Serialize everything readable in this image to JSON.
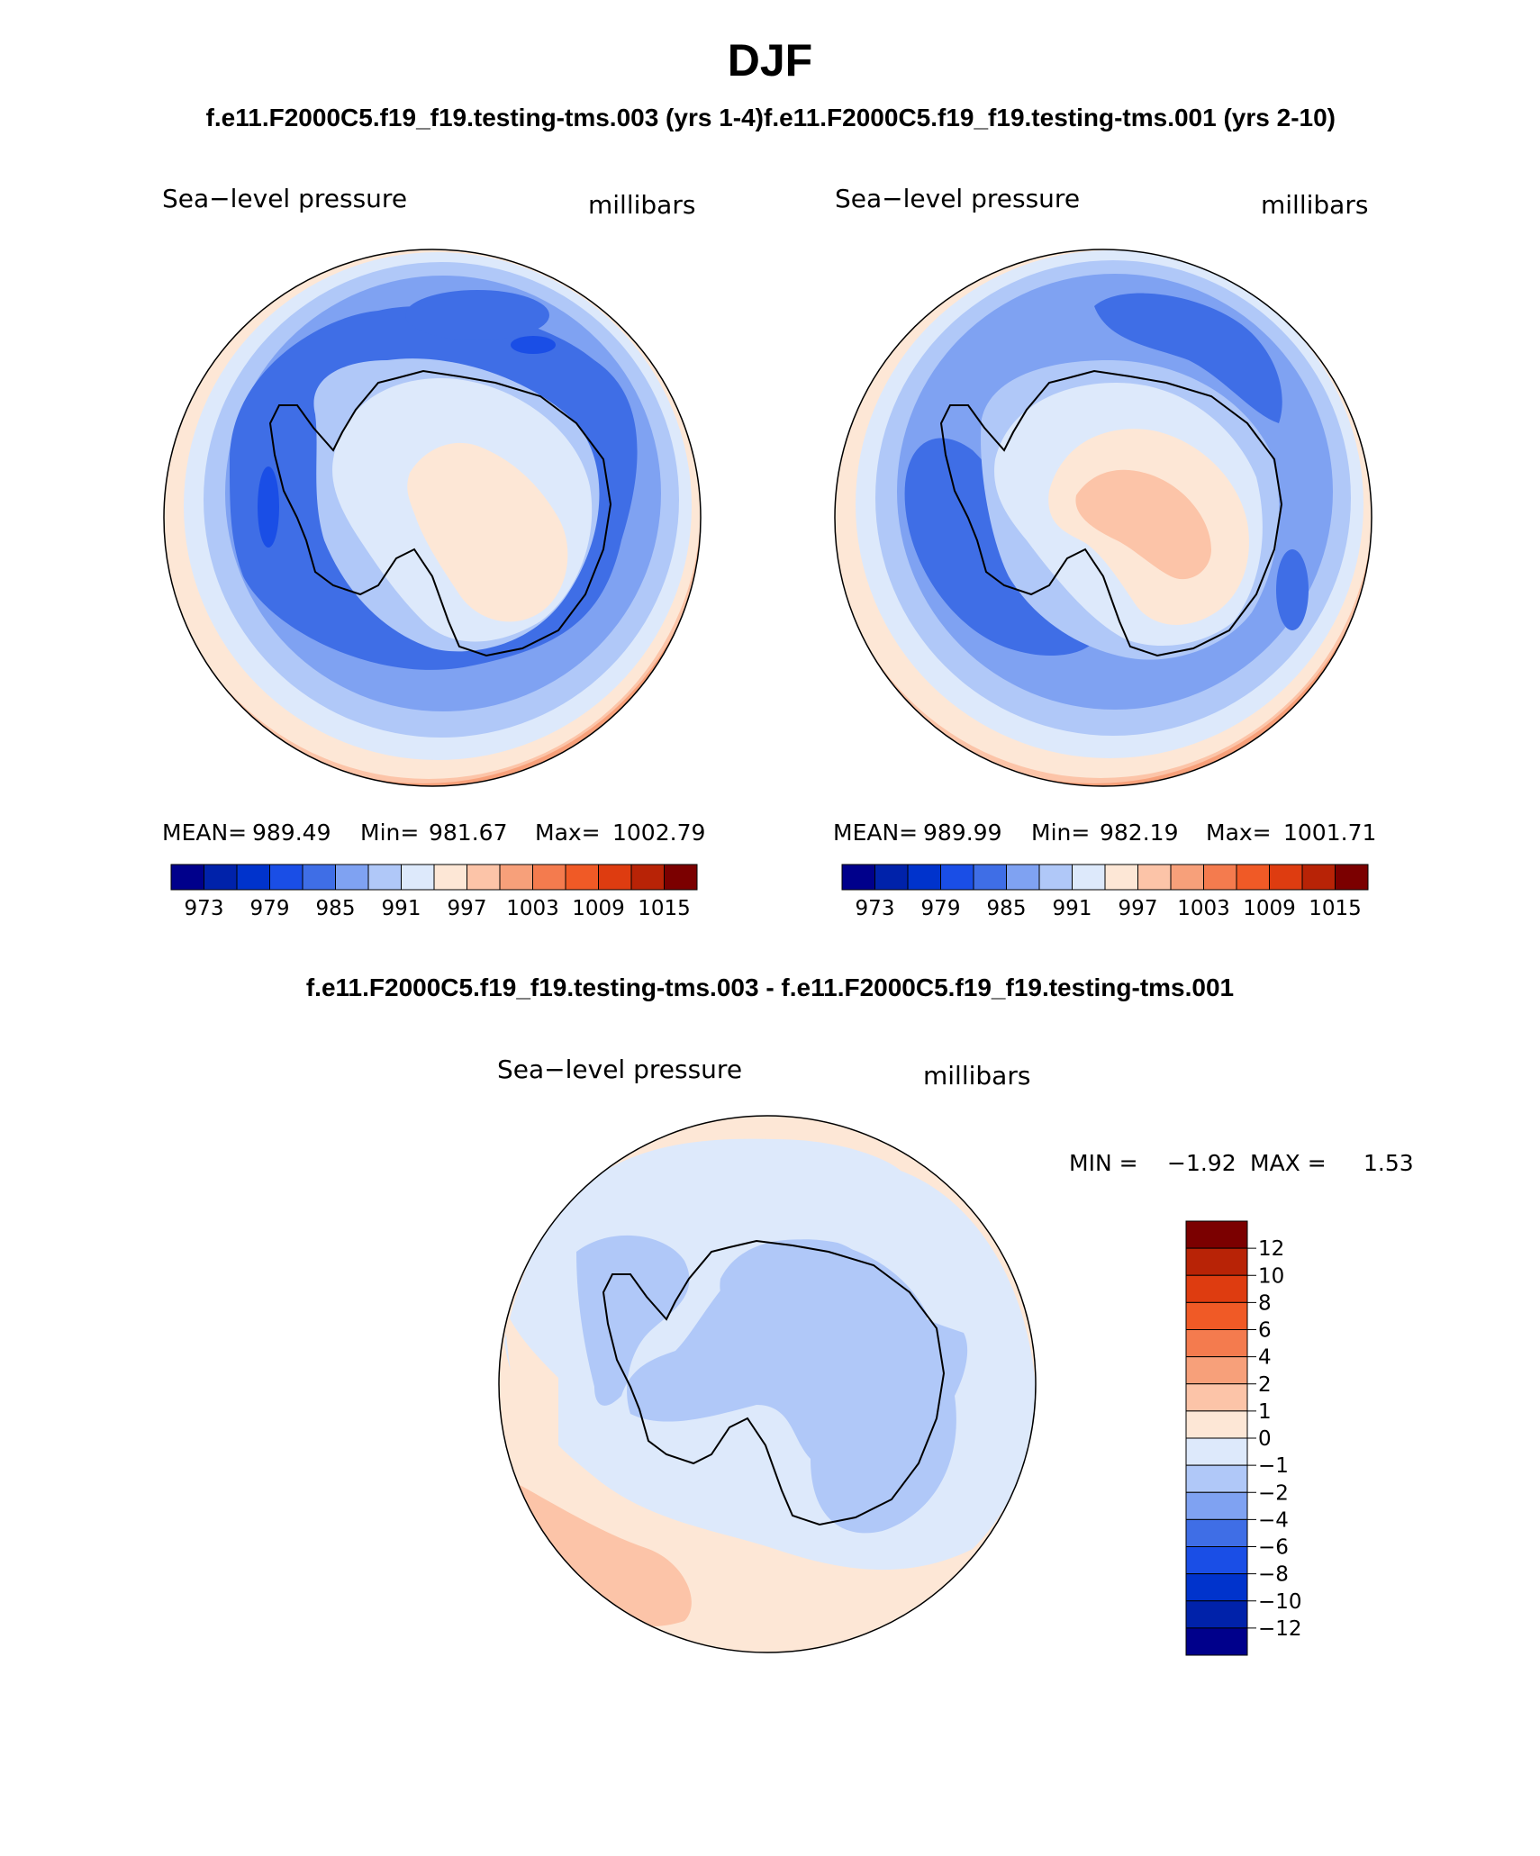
{
  "figure": {
    "title": "DJF",
    "left_subtitle": "f.e11.F2000C5.f19_f19.testing-tms.003 (yrs 1-4)",
    "right_subtitle": "f.e11.F2000C5.f19_f19.testing-tms.001 (yrs 2-10)",
    "diff_subtitle": "f.e11.F2000C5.f19_f19.testing-tms.003 - f.e11.F2000C5.f19_f19.testing-tms.001"
  },
  "panels": {
    "left": {
      "variable": "Sea−level pressure",
      "units": "millibars",
      "stats": {
        "mean_label": "MEAN=",
        "mean": "989.49",
        "min_label": "Min=",
        "min": "981.67",
        "max_label": "Max=",
        "max": "1002.79"
      }
    },
    "right": {
      "variable": "Sea−level pressure",
      "units": "millibars",
      "stats": {
        "mean_label": "MEAN=",
        "mean": "989.99",
        "min_label": "Min=",
        "min": "982.19",
        "max_label": "Max=",
        "max": "1001.71"
      }
    },
    "diff": {
      "variable": "Sea−level pressure",
      "units": "millibars",
      "stats": {
        "min_label": "MIN =",
        "min": "−1.92",
        "max_label": "MAX =",
        "max": "1.53"
      }
    }
  },
  "colorbars": {
    "abs": {
      "colors": [
        "#00008b",
        "#0022aa",
        "#0033cc",
        "#1a4ee6",
        "#3f6ee6",
        "#7fa2f2",
        "#b0c8f8",
        "#dde9fb",
        "#fde7d6",
        "#fcc4a8",
        "#f7a07a",
        "#f47b4e",
        "#f05a26",
        "#de3c10",
        "#b82306",
        "#7b0000"
      ],
      "tick_labels": [
        "973",
        "979",
        "985",
        "991",
        "997",
        "1003",
        "1009",
        "1015"
      ]
    },
    "diff": {
      "colors_top_to_bottom": [
        "#7b0000",
        "#b82306",
        "#de3c10",
        "#f05a26",
        "#f47b4e",
        "#f7a07a",
        "#fcc4a8",
        "#fde7d6",
        "#dde9fb",
        "#b0c8f8",
        "#7fa2f2",
        "#3f6ee6",
        "#1a4ee6",
        "#0033cc",
        "#0022aa",
        "#00008b"
      ],
      "tick_labels_top_to_bottom": [
        "12",
        "10",
        "8",
        "6",
        "4",
        "2",
        "1",
        "0",
        "−1",
        "−2",
        "−4",
        "−6",
        "−8",
        "−10",
        "−12"
      ]
    }
  },
  "map_colors": {
    "land_outline": "#000000",
    "map_border": "#000000"
  }
}
